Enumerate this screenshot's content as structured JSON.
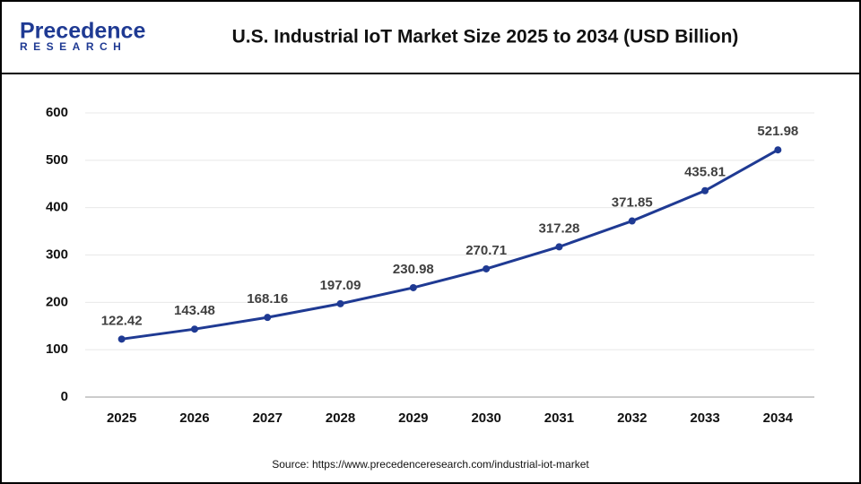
{
  "logo": {
    "name": "Precedence",
    "tagline": "RESEARCH"
  },
  "chart_data": {
    "type": "line",
    "title": "U.S. Industrial IoT Market Size 2025 to 2034 (USD Billion)",
    "categories": [
      "2025",
      "2026",
      "2027",
      "2028",
      "2029",
      "2030",
      "2031",
      "2032",
      "2033",
      "2034"
    ],
    "values": [
      122.42,
      143.48,
      168.16,
      197.09,
      230.98,
      270.71,
      317.28,
      371.85,
      435.81,
      521.98
    ],
    "color": "#1f3a93",
    "ylim": [
      0,
      600
    ],
    "yticks": [
      0,
      100,
      200,
      300,
      400,
      500,
      600
    ],
    "grid": true,
    "source": "Source: https://www.precedenceresearch.com/industrial-iot-market"
  }
}
